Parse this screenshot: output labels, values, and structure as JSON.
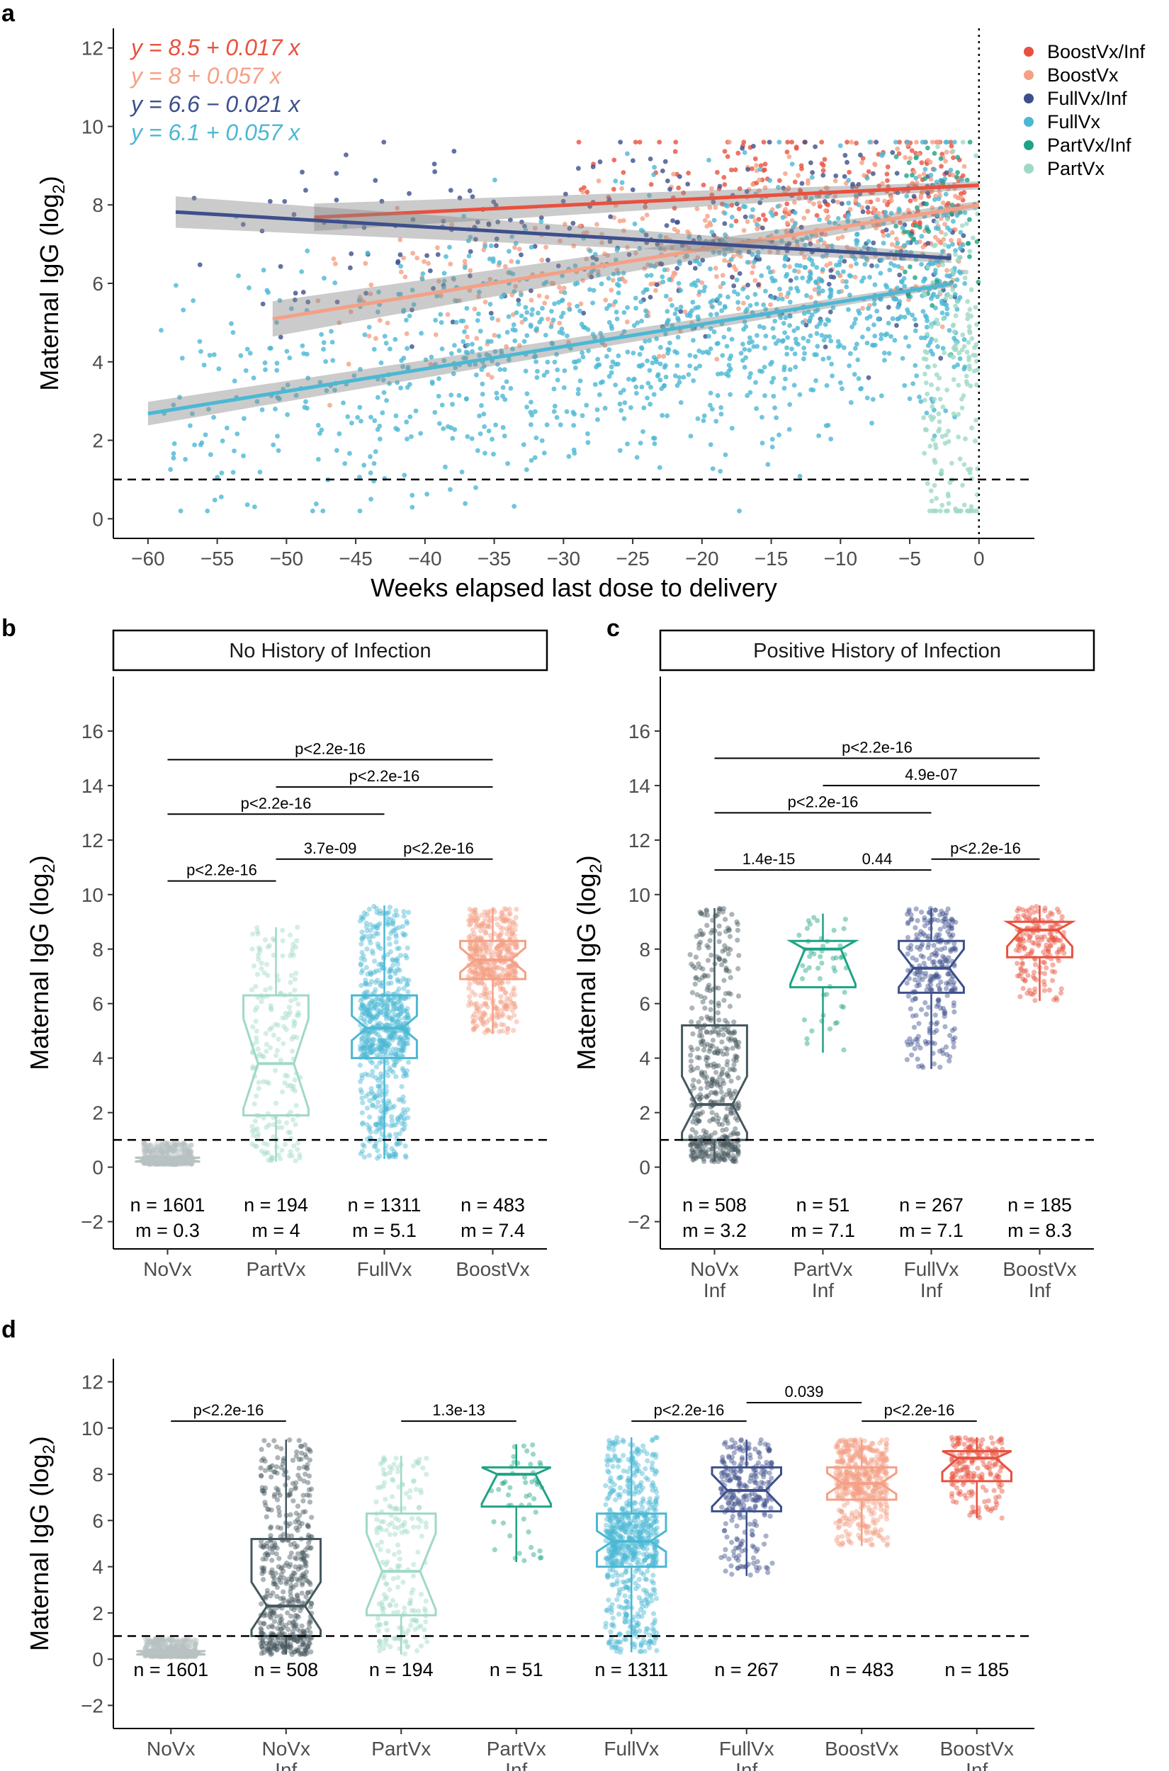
{
  "panel_labels": {
    "a": "a",
    "b": "b",
    "c": "c",
    "d": "d"
  },
  "colors": {
    "BoostVx/Inf": "#e8513f",
    "BoostVx": "#f4a086",
    "FullVx/Inf": "#3d4f8c",
    "FullVx": "#4bb8d4",
    "PartVx/Inf": "#1fa386",
    "PartVx": "#9fd9c6",
    "NoVx": "#b8c2c2",
    "NoVx/Inf": "#46585f"
  },
  "chart_data": [
    {
      "id": "a",
      "type": "scatter",
      "xlabel": "Weeks elapsed last dose to delivery",
      "ylabel": "Maternal IgG (log",
      "ylabel_sub": "2",
      "ylabel_end": ")",
      "xlim": [
        -62.5,
        4
      ],
      "ylim": [
        -0.5,
        12.5
      ],
      "xticks": [
        -60,
        -55,
        -50,
        -45,
        -40,
        -35,
        -30,
        -25,
        -20,
        -15,
        -10,
        -5,
        0
      ],
      "xtick_labels": [
        "−60",
        "−55",
        "−50",
        "−45",
        "−40",
        "−35",
        "−30",
        "−25",
        "−20",
        "−15",
        "−10",
        "−5",
        "0"
      ],
      "yticks": [
        0,
        2,
        4,
        6,
        8,
        10,
        12
      ],
      "reference_hline": 1,
      "reference_vline": 0,
      "equations": [
        {
          "group": "BoostVx/Inf",
          "text": "y = 8.5 + 0.017 x"
        },
        {
          "group": "BoostVx",
          "text": "y = 8 + 0.057 x"
        },
        {
          "group": "FullVx/Inf",
          "text": "y = 6.6 − 0.021 x"
        },
        {
          "group": "FullVx",
          "text": "y = 6.1 + 0.057 x"
        }
      ],
      "legend": [
        "BoostVx/Inf",
        "BoostVx",
        "FullVx/Inf",
        "FullVx",
        "PartVx/Inf",
        "PartVx"
      ],
      "fits": [
        {
          "group": "BoostVx/Inf",
          "intercept": 8.5,
          "slope": 0.017,
          "x_range": [
            -48,
            0
          ],
          "se": [
            0.35,
            0.1
          ]
        },
        {
          "group": "BoostVx",
          "intercept": 8.0,
          "slope": 0.057,
          "x_range": [
            -51,
            0
          ],
          "se": [
            0.45,
            0.1
          ]
        },
        {
          "group": "FullVx/Inf",
          "intercept": 6.6,
          "slope": -0.021,
          "x_range": [
            -58,
            -2
          ],
          "se": [
            0.4,
            0.12
          ]
        },
        {
          "group": "FullVx",
          "intercept": 6.1,
          "slope": 0.057,
          "x_range": [
            -60,
            -2
          ],
          "se": [
            0.3,
            0.08
          ]
        }
      ],
      "point_groups": [
        {
          "group": "BoostVx/Inf",
          "n": 185,
          "x_range": [
            -30,
            -1
          ],
          "mean": 8.6,
          "sd": 0.7
        },
        {
          "group": "BoostVx",
          "n": 483,
          "x_range": [
            -48,
            -1
          ],
          "mean": 7.5,
          "sd": 1.0
        },
        {
          "group": "FullVx/Inf",
          "n": 267,
          "x_range": [
            -58,
            -1
          ],
          "mean": 7.0,
          "sd": 1.3
        },
        {
          "group": "FullVx",
          "n": 1311,
          "x_range": [
            -60,
            -1
          ],
          "mean": 4.9,
          "sd": 1.6
        },
        {
          "group": "PartVx/Inf",
          "n": 51,
          "x_range": [
            -6,
            0
          ],
          "mean": 7.3,
          "sd": 1.3
        },
        {
          "group": "PartVx",
          "n": 194,
          "x_range": [
            -4,
            0
          ],
          "mean": 3.7,
          "sd": 2.4
        }
      ]
    },
    {
      "id": "b",
      "type": "box",
      "strip": "No History of Infection",
      "ylabel": "Maternal IgG (log",
      "ylabel_sub": "2",
      "ylabel_end": ")",
      "ylim": [
        -3,
        18
      ],
      "yticks": [
        -2,
        0,
        2,
        4,
        6,
        8,
        10,
        12,
        14,
        16
      ],
      "reference_hline": 1,
      "categories": [
        {
          "label": [
            "NoVx"
          ],
          "group": "NoVx",
          "n_text": "n = 1601",
          "m_text": "m = 0.3",
          "n": 1601,
          "q1": 0.2,
          "median": 0.3,
          "q3": 0.35,
          "lo": 0.1,
          "hi": 0.9
        },
        {
          "label": [
            "PartVx"
          ],
          "group": "PartVx",
          "n_text": "n = 194",
          "m_text": "m = 4",
          "n": 194,
          "q1": 1.9,
          "median": 3.8,
          "q3": 6.3,
          "lo": 0.2,
          "hi": 8.8
        },
        {
          "label": [
            "FullVx"
          ],
          "group": "FullVx",
          "n_text": "n = 1311",
          "m_text": "m = 5.1",
          "n": 1311,
          "q1": 4.0,
          "median": 5.1,
          "q3": 6.3,
          "lo": 0.3,
          "hi": 9.6
        },
        {
          "label": [
            "BoostVx"
          ],
          "group": "BoostVx",
          "n_text": "n = 483",
          "m_text": "m = 7.4",
          "n": 483,
          "q1": 6.9,
          "median": 7.6,
          "q3": 8.3,
          "lo": 4.9,
          "hi": 9.5
        }
      ],
      "comparisons": [
        {
          "from": 0,
          "to": 1,
          "y": 10.5,
          "label": "p<2.2e-16"
        },
        {
          "from": 1,
          "to": 2,
          "y": 11.3,
          "label": "3.7e-09"
        },
        {
          "from": 2,
          "to": 3,
          "y": 11.3,
          "label": "p<2.2e-16"
        },
        {
          "from": 0,
          "to": 2,
          "y": 12.95,
          "label": "p<2.2e-16"
        },
        {
          "from": 1,
          "to": 3,
          "y": 13.95,
          "label": "p<2.2e-16"
        },
        {
          "from": 0,
          "to": 3,
          "y": 14.95,
          "label": "p<2.2e-16"
        }
      ]
    },
    {
      "id": "c",
      "type": "box",
      "strip": "Positive History of Infection",
      "ylabel": "Maternal IgG (log",
      "ylabel_sub": "2",
      "ylabel_end": ")",
      "ylim": [
        -3,
        18
      ],
      "yticks": [
        -2,
        0,
        2,
        4,
        6,
        8,
        10,
        12,
        14,
        16
      ],
      "reference_hline": 1,
      "categories": [
        {
          "label": [
            "NoVx",
            "Inf"
          ],
          "group": "NoVx/Inf",
          "n_text": "n = 508",
          "m_text": "m = 3.2",
          "n": 508,
          "q1": 1.0,
          "median": 2.3,
          "q3": 5.2,
          "lo": 0.2,
          "hi": 9.5
        },
        {
          "label": [
            "PartVx",
            "Inf"
          ],
          "group": "PartVx/Inf",
          "n_text": "n = 51",
          "m_text": "m = 7.1",
          "n": 51,
          "q1": 6.6,
          "median": 8.0,
          "q3": 8.3,
          "lo": 4.2,
          "hi": 9.3
        },
        {
          "label": [
            "FullVx",
            "Inf"
          ],
          "group": "FullVx/Inf",
          "n_text": "n = 267",
          "m_text": "m = 7.1",
          "n": 267,
          "q1": 6.4,
          "median": 7.3,
          "q3": 8.3,
          "lo": 3.6,
          "hi": 9.5
        },
        {
          "label": [
            "BoostVx",
            "Inf"
          ],
          "group": "BoostVx/Inf",
          "n_text": "n = 185",
          "m_text": "m = 8.3",
          "n": 185,
          "q1": 7.7,
          "median": 8.7,
          "q3": 9.0,
          "lo": 6.1,
          "hi": 9.6
        }
      ],
      "comparisons": [
        {
          "from": 0,
          "to": 1,
          "y": 10.9,
          "label": "1.4e-15"
        },
        {
          "from": 1,
          "to": 2,
          "y": 10.9,
          "label": "0.44"
        },
        {
          "from": 2,
          "to": 3,
          "y": 11.3,
          "label": "p<2.2e-16"
        },
        {
          "from": 0,
          "to": 2,
          "y": 13.0,
          "label": "p<2.2e-16"
        },
        {
          "from": 1,
          "to": 3,
          "y": 14.0,
          "label": "4.9e-07"
        },
        {
          "from": 0,
          "to": 3,
          "y": 15.0,
          "label": "p<2.2e-16"
        }
      ]
    },
    {
      "id": "d",
      "type": "box",
      "ylabel": "Maternal IgG (log",
      "ylabel_sub": "2",
      "ylabel_end": ")",
      "ylim": [
        -3,
        13
      ],
      "yticks": [
        -2,
        0,
        2,
        4,
        6,
        8,
        10,
        12
      ],
      "reference_hline": 1,
      "categories": [
        {
          "label": [
            "NoVx"
          ],
          "group": "NoVx",
          "n_text": "n = 1601",
          "n": 1601,
          "q1": 0.2,
          "median": 0.3,
          "q3": 0.35,
          "lo": 0.1,
          "hi": 0.9
        },
        {
          "label": [
            "NoVx",
            "Inf"
          ],
          "group": "NoVx/Inf",
          "n_text": "n = 508",
          "n": 508,
          "q1": 1.0,
          "median": 2.3,
          "q3": 5.2,
          "lo": 0.2,
          "hi": 9.5
        },
        {
          "label": [
            "PartVx"
          ],
          "group": "PartVx",
          "n_text": "n = 194",
          "n": 194,
          "q1": 1.9,
          "median": 3.8,
          "q3": 6.3,
          "lo": 0.2,
          "hi": 8.8
        },
        {
          "label": [
            "PartVx",
            "Inf"
          ],
          "group": "PartVx/Inf",
          "n_text": "n = 51",
          "n": 51,
          "q1": 6.6,
          "median": 8.0,
          "q3": 8.3,
          "lo": 4.2,
          "hi": 9.3
        },
        {
          "label": [
            "FullVx"
          ],
          "group": "FullVx",
          "n_text": "n = 1311",
          "n": 1311,
          "q1": 4.0,
          "median": 5.1,
          "q3": 6.3,
          "lo": 0.3,
          "hi": 9.6
        },
        {
          "label": [
            "FullVx",
            "Inf"
          ],
          "group": "FullVx/Inf",
          "n_text": "n = 267",
          "n": 267,
          "q1": 6.4,
          "median": 7.3,
          "q3": 8.3,
          "lo": 3.6,
          "hi": 9.5
        },
        {
          "label": [
            "BoostVx"
          ],
          "group": "BoostVx",
          "n_text": "n = 483",
          "n": 483,
          "q1": 6.9,
          "median": 7.6,
          "q3": 8.3,
          "lo": 4.9,
          "hi": 9.5
        },
        {
          "label": [
            "BoostVx",
            "Inf"
          ],
          "group": "BoostVx/Inf",
          "n_text": "n = 185",
          "n": 185,
          "q1": 7.7,
          "median": 8.7,
          "q3": 9.0,
          "lo": 6.1,
          "hi": 9.6
        }
      ],
      "comparisons": [
        {
          "from": 0,
          "to": 1,
          "y": 10.3,
          "label": "p<2.2e-16"
        },
        {
          "from": 2,
          "to": 3,
          "y": 10.3,
          "label": "1.3e-13"
        },
        {
          "from": 4,
          "to": 5,
          "y": 10.3,
          "label": "p<2.2e-16"
        },
        {
          "from": 5,
          "to": 6,
          "y": 11.1,
          "label": "0.039"
        },
        {
          "from": 6,
          "to": 7,
          "y": 10.3,
          "label": "p<2.2e-16"
        }
      ]
    }
  ]
}
